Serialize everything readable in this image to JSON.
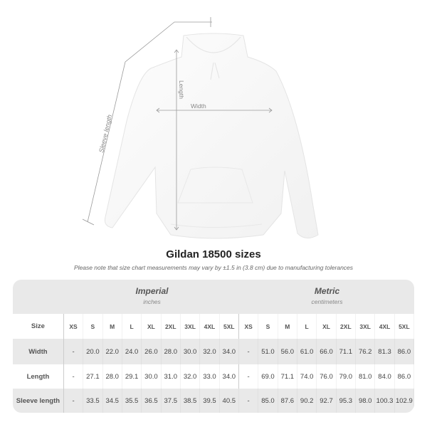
{
  "image": {
    "labels": {
      "length": "Length",
      "width": "Width",
      "sleeve": "Sleeve length"
    }
  },
  "title": "Gildan 18500 sizes",
  "note": "Please note that size chart measurements may vary by ±1.5 in (3.8 cm) due to manufacturing tolerances",
  "table": {
    "imperial": {
      "name": "Imperial",
      "unit": "inches"
    },
    "metric": {
      "name": "Metric",
      "unit": "centimeters"
    },
    "size_label": "Size",
    "sizes": [
      "XS",
      "S",
      "M",
      "L",
      "XL",
      "2XL",
      "3XL",
      "4XL",
      "5XL"
    ],
    "rows": [
      {
        "label": "Width",
        "imperial": [
          "-",
          "20.0",
          "22.0",
          "24.0",
          "26.0",
          "28.0",
          "30.0",
          "32.0",
          "34.0"
        ],
        "metric": [
          "-",
          "51.0",
          "56.0",
          "61.0",
          "66.0",
          "71.1",
          "76.2",
          "81.3",
          "86.0"
        ]
      },
      {
        "label": "Length",
        "imperial": [
          "-",
          "27.1",
          "28.0",
          "29.1",
          "30.0",
          "31.0",
          "32.0",
          "33.0",
          "34.0"
        ],
        "metric": [
          "-",
          "69.0",
          "71.1",
          "74.0",
          "76.0",
          "79.0",
          "81.0",
          "84.0",
          "86.0"
        ]
      },
      {
        "label": "Sleeve length",
        "imperial": [
          "-",
          "33.5",
          "34.5",
          "35.5",
          "36.5",
          "37.5",
          "38.5",
          "39.5",
          "40.5"
        ],
        "metric": [
          "-",
          "85.0",
          "87.6",
          "90.2",
          "92.7",
          "95.3",
          "98.0",
          "100.3",
          "102.9"
        ]
      }
    ]
  },
  "colors": {
    "header_bg": "#e9e9e9",
    "text": "#555555",
    "line": "#999999"
  }
}
